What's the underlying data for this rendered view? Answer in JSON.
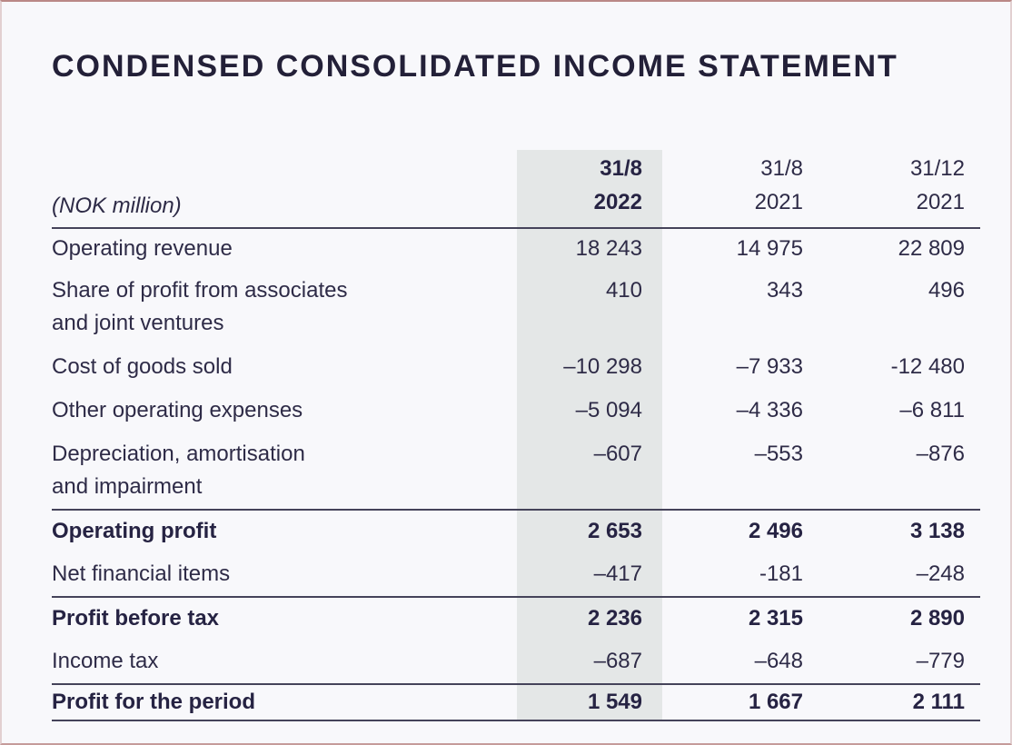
{
  "page": {
    "title": "CONDENSED CONSOLIDATED INCOME STATEMENT"
  },
  "table": {
    "unit_label": "(NOK million)",
    "columns": [
      {
        "period": "31/8",
        "year": "2022",
        "highlighted": true
      },
      {
        "period": "31/8",
        "year": "2021",
        "highlighted": false
      },
      {
        "period": "31/12",
        "year": "2021",
        "highlighted": false
      }
    ],
    "rows": [
      {
        "label": "Operating revenue",
        "values": [
          "18 243",
          "14 975",
          "22 809"
        ]
      },
      {
        "label": "Share of profit from associates\nand joint ventures",
        "values": [
          "410",
          "343",
          "496"
        ]
      },
      {
        "label": "Cost of goods sold",
        "values": [
          "–10 298",
          "–7 933",
          "-12 480"
        ]
      },
      {
        "label": "Other operating expenses",
        "values": [
          "–5 094",
          "–4 336",
          "–6 811"
        ]
      },
      {
        "label": "Depreciation, amortisation\nand impairment",
        "values": [
          "–607",
          "–553",
          "–876"
        ]
      },
      {
        "label": "Operating profit",
        "values": [
          "2 653",
          "2 496",
          "3 138"
        ]
      },
      {
        "label": "Net financial items",
        "values": [
          "–417",
          "-181",
          "–248"
        ]
      },
      {
        "label": "Profit before tax",
        "values": [
          "2 236",
          "2 315",
          "2 890"
        ]
      },
      {
        "label": "Income tax",
        "values": [
          "–687",
          "–648",
          "–779"
        ]
      },
      {
        "label": "Profit for the period",
        "values": [
          "1 549",
          "1 667",
          "2 111"
        ]
      }
    ]
  },
  "colors": {
    "page_background": "#f8f8fb",
    "text": "#2e2b47",
    "rule": "#45435a",
    "highlight_band": "#e4e7e7",
    "edge_tint": "#923f3a"
  }
}
